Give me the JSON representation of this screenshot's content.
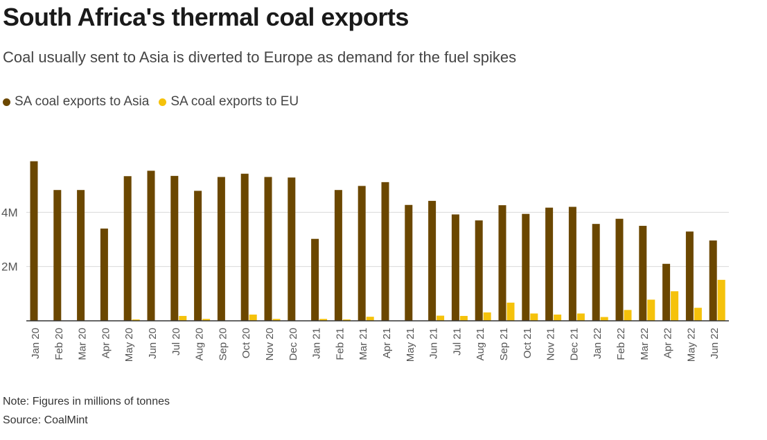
{
  "header": {
    "title": "South Africa's thermal coal exports",
    "subtitle": "Coal usually sent to Asia is diverted to Europe as demand for the fuel spikes"
  },
  "colors": {
    "asia": "#6b4700",
    "eu": "#f5c20b",
    "grid": "#d9d9d9",
    "axis": "#333333",
    "tick_text": "#555555"
  },
  "chart_data": {
    "type": "bar",
    "title": "South Africa's thermal coal exports",
    "subtitle": "Coal usually sent to Asia is diverted to Europe as demand for the fuel spikes",
    "xlabel": "",
    "ylabel": "",
    "ylim": [
      0,
      6000000
    ],
    "yticks": [
      2000000,
      4000000
    ],
    "ytick_labels": [
      "2M",
      "4M"
    ],
    "grid": true,
    "legend_position": "top-left",
    "categories": [
      "Jan 20",
      "Feb 20",
      "Mar 20",
      "Apr 20",
      "May 20",
      "Jun 20",
      "Jul 20",
      "Aug 20",
      "Sep 20",
      "Oct 20",
      "Nov 20",
      "Dec 20",
      "Jan 21",
      "Feb 21",
      "Mar 21",
      "Apr 21",
      "May 21",
      "Jun 21",
      "Jul 21",
      "Aug 21",
      "Sep 21",
      "Oct 21",
      "Nov 21",
      "Dec 21",
      "Jan 22",
      "Feb 22",
      "Mar 22",
      "Apr 22",
      "May 22",
      "Jun 22"
    ],
    "series": [
      {
        "name": "SA coal exports to Asia",
        "values": [
          5880000,
          4820000,
          4820000,
          3400000,
          5330000,
          5530000,
          5340000,
          4790000,
          5300000,
          5420000,
          5300000,
          5280000,
          3020000,
          4820000,
          4970000,
          5110000,
          4270000,
          4420000,
          3920000,
          3700000,
          4260000,
          3940000,
          4170000,
          4200000,
          3570000,
          3760000,
          3500000,
          2100000,
          3290000,
          2960000
        ]
      },
      {
        "name": "SA coal exports to EU",
        "values": [
          0,
          0,
          0,
          0,
          50000,
          0,
          180000,
          70000,
          0,
          230000,
          70000,
          0,
          70000,
          50000,
          150000,
          0,
          0,
          190000,
          180000,
          310000,
          670000,
          270000,
          230000,
          270000,
          140000,
          400000,
          780000,
          1090000,
          480000,
          1510000
        ]
      }
    ]
  },
  "footer": {
    "note": "Note: Figures in millions of tonnes",
    "source": "Source: CoalMint"
  }
}
